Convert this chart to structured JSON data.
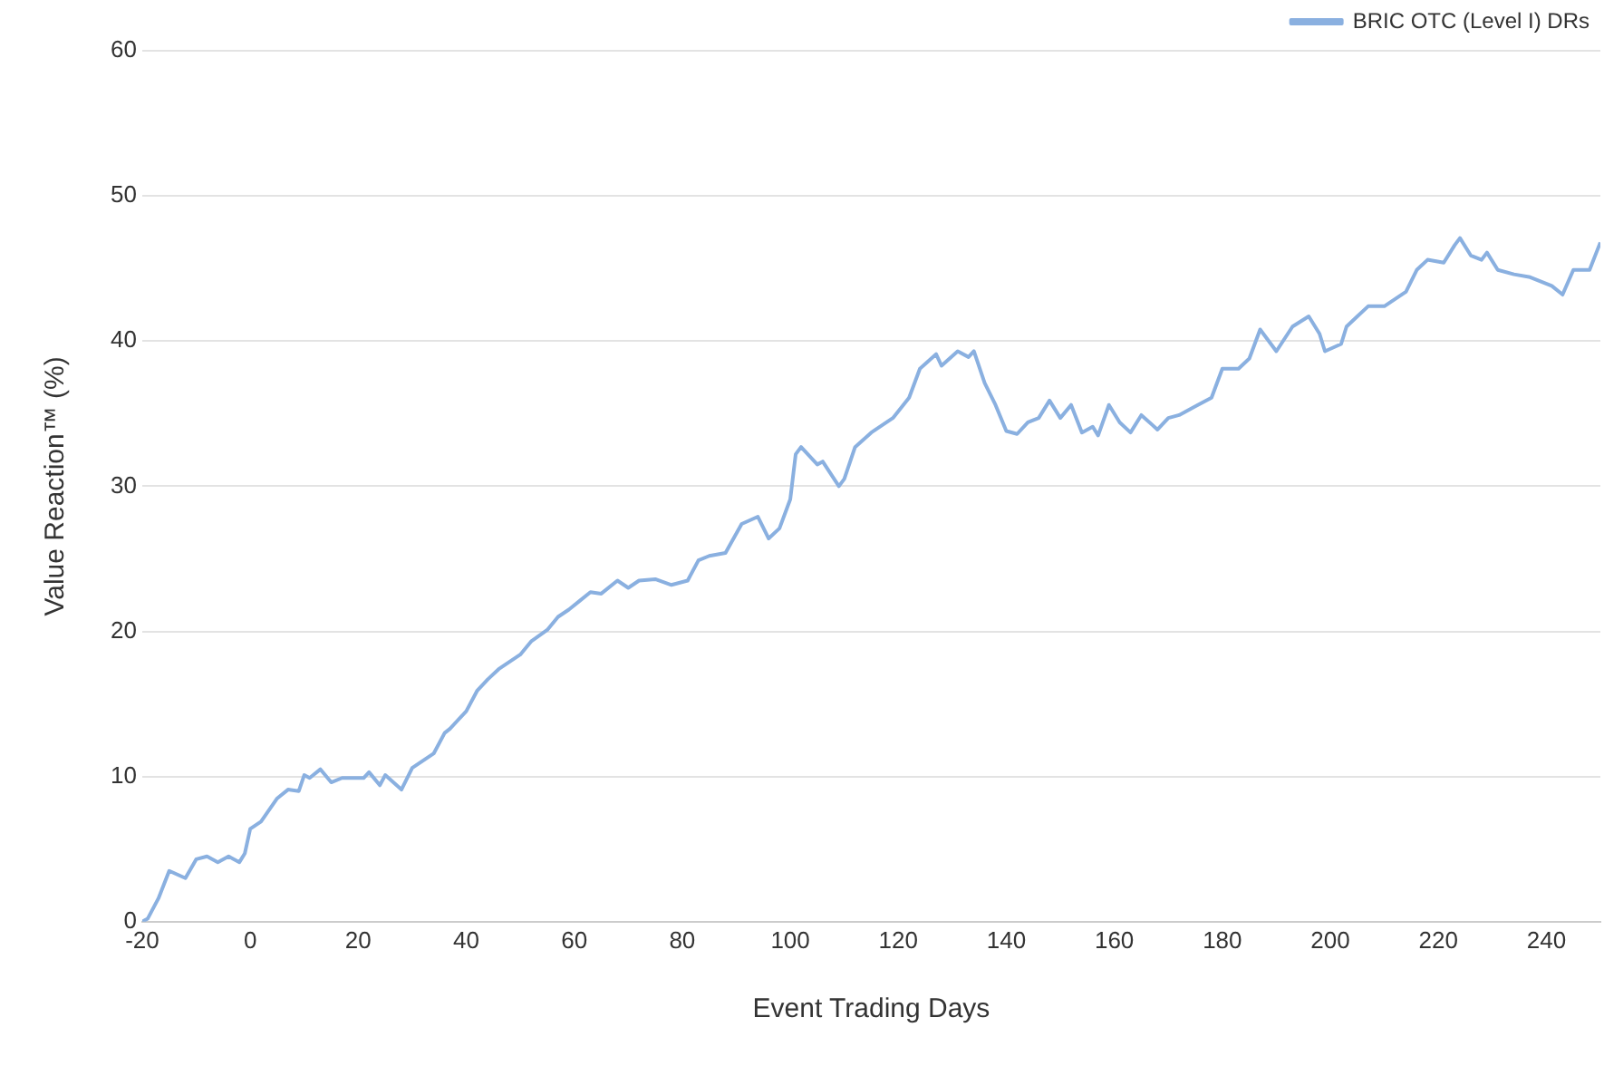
{
  "chart_data": {
    "type": "line",
    "xlabel": "Event Trading Days",
    "ylabel": "Value Reaction™ (%)",
    "xlim": [
      -20,
      250
    ],
    "xticks": [
      -20,
      0,
      20,
      40,
      60,
      80,
      100,
      120,
      140,
      160,
      180,
      200,
      220,
      240
    ],
    "ylim": [
      0,
      60
    ],
    "yticks": [
      0,
      10,
      20,
      30,
      40,
      50,
      60
    ],
    "grid": "y",
    "legend": "top right",
    "marker": "none",
    "series": [
      {
        "name": "BRIC OTC (Level I) DRs",
        "color": "#8ab0e0",
        "x": [
          -20,
          -19,
          -17,
          -15,
          -12,
          -10,
          -8,
          -6,
          -4,
          -2,
          -1,
          0,
          2,
          5,
          7,
          9,
          10,
          11,
          13,
          15,
          17,
          21,
          22,
          24,
          25,
          28,
          30,
          32,
          34,
          36,
          37,
          40,
          42,
          44,
          46,
          48,
          50,
          52,
          55,
          57,
          59,
          61,
          63,
          65,
          68,
          70,
          72,
          75,
          78,
          81,
          83,
          85,
          88,
          91,
          94,
          96,
          98,
          100,
          101,
          102,
          105,
          106,
          109,
          110,
          112,
          115,
          119,
          122,
          124,
          127,
          128,
          131,
          133,
          134,
          136,
          138,
          140,
          142,
          144,
          146,
          148,
          150,
          152,
          154,
          156,
          157,
          159,
          161,
          163,
          165,
          168,
          170,
          172,
          175,
          178,
          180,
          183,
          185,
          187,
          190,
          193,
          196,
          198,
          199,
          202,
          203,
          205,
          207,
          210,
          212,
          214,
          216,
          218,
          221,
          223,
          224,
          226,
          228,
          229,
          231,
          234,
          237,
          241,
          243,
          245,
          248,
          250
        ],
        "values": [
          0,
          0.2,
          1.6,
          3.5,
          3.0,
          4.3,
          4.5,
          4.1,
          4.5,
          4.1,
          4.7,
          6.4,
          6.9,
          8.5,
          9.1,
          9.0,
          10.1,
          9.9,
          10.5,
          9.6,
          9.9,
          9.9,
          10.3,
          9.4,
          10.1,
          9.1,
          10.6,
          11.1,
          11.6,
          13.0,
          13.3,
          14.5,
          15.9,
          16.7,
          17.4,
          17.9,
          18.4,
          19.3,
          20.1,
          21.0,
          21.5,
          22.1,
          22.7,
          22.6,
          23.5,
          23.0,
          23.5,
          23.6,
          23.2,
          23.5,
          24.9,
          25.2,
          25.4,
          27.4,
          27.9,
          26.4,
          27.1,
          29.1,
          32.2,
          32.7,
          31.5,
          31.7,
          30.0,
          30.5,
          32.7,
          33.7,
          34.7,
          36.1,
          38.1,
          39.1,
          38.3,
          39.3,
          38.9,
          39.3,
          37.1,
          35.6,
          33.8,
          33.6,
          34.4,
          34.7,
          35.9,
          34.7,
          35.6,
          33.7,
          34.1,
          33.5,
          35.6,
          34.4,
          33.7,
          34.9,
          33.9,
          34.7,
          34.9,
          35.5,
          36.1,
          38.1,
          38.1,
          38.8,
          40.8,
          39.3,
          41.0,
          41.7,
          40.5,
          39.3,
          39.8,
          41.0,
          41.7,
          42.4,
          42.4,
          42.9,
          43.4,
          44.9,
          45.6,
          45.4,
          46.6,
          47.1,
          45.9,
          45.6,
          46.1,
          44.9,
          44.6,
          44.4,
          43.8,
          43.2,
          44.9,
          44.9,
          46.8
        ]
      }
    ]
  }
}
